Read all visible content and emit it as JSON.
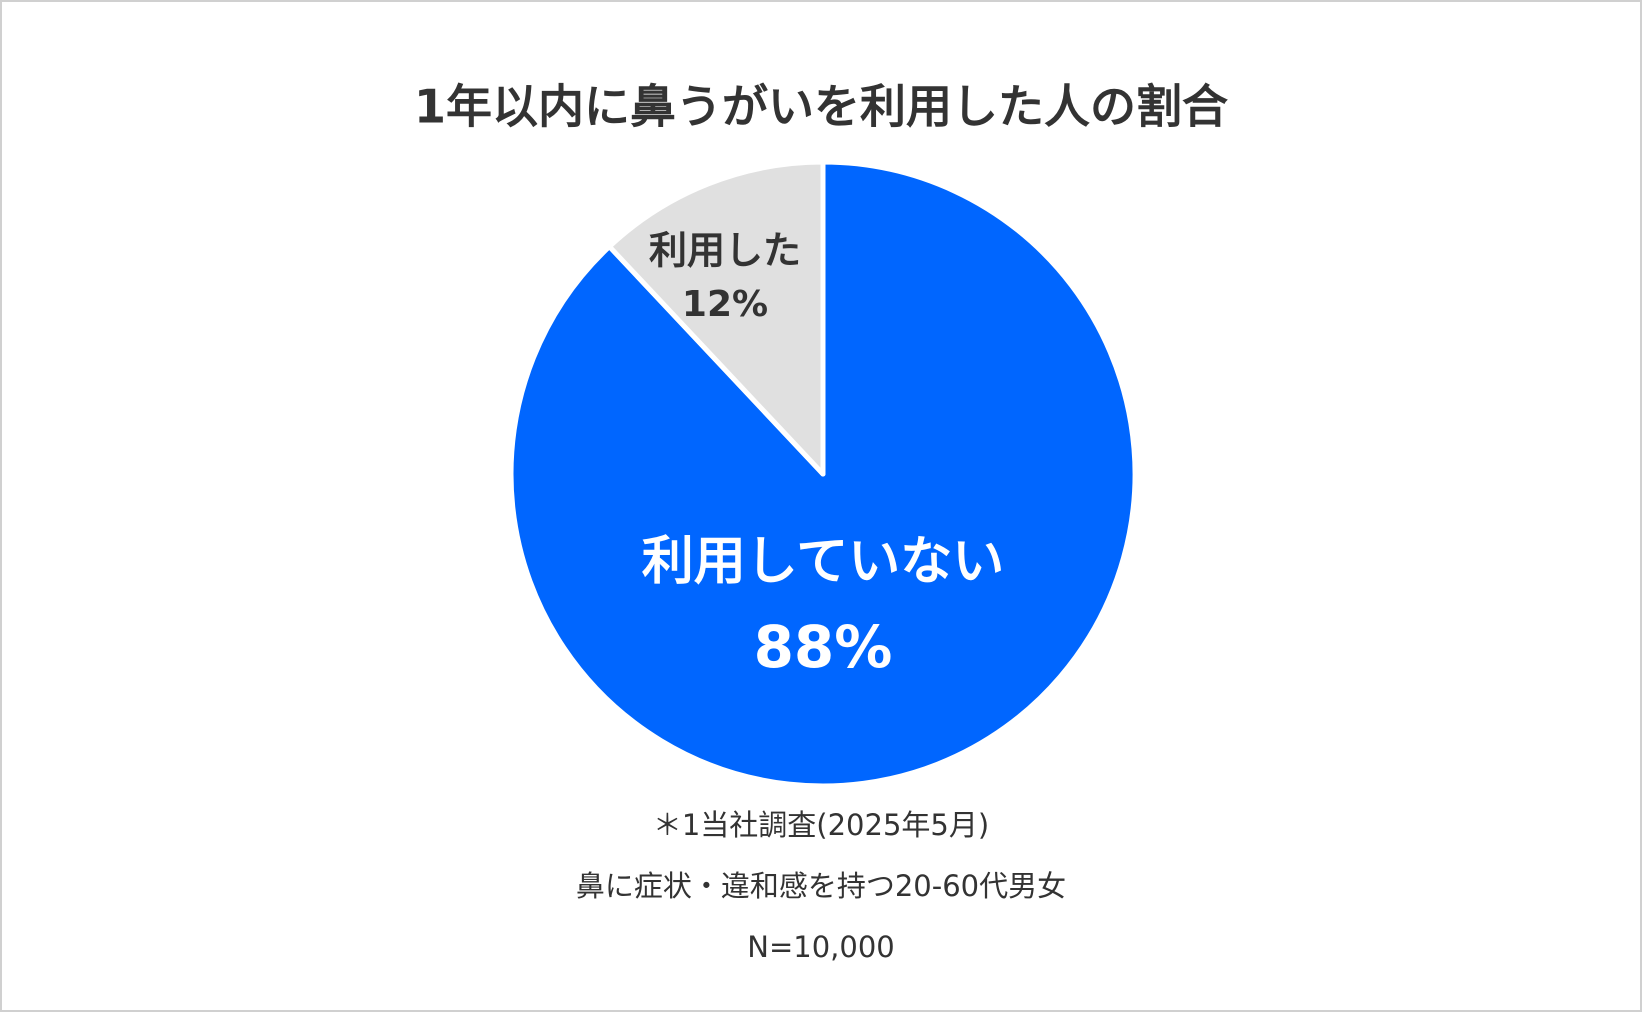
{
  "chart_data": {
    "type": "pie",
    "title": "1年以内に鼻うがいを利用した人の割合",
    "categories": [
      "利用していない",
      "利用した"
    ],
    "values": [
      88,
      12
    ],
    "value_labels": [
      "88%",
      "12%"
    ],
    "colors": [
      "#0066ff",
      "#e0e0e0"
    ],
    "label_colors": [
      "#ffffff",
      "#333333"
    ],
    "notes": [
      "＊1当社調査(2025年5月)",
      "鼻に症状・違和感を持つ20-60代男女",
      "N=10,000"
    ]
  }
}
